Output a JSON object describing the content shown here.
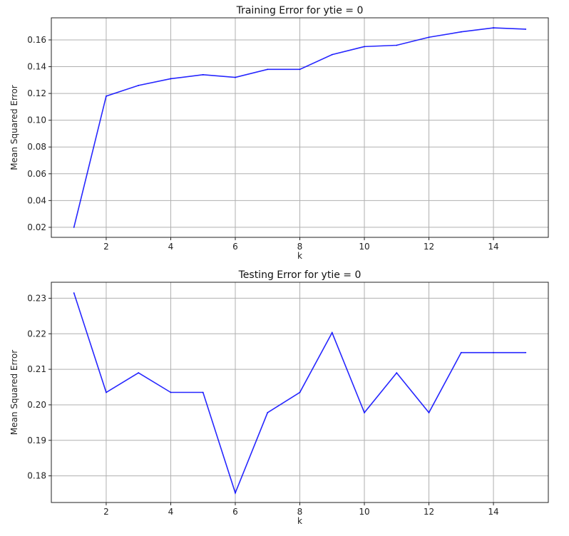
{
  "chart_data": [
    {
      "type": "line",
      "title": "Training Error for ytie = 0",
      "xlabel": "k",
      "ylabel": "Mean Squared Error",
      "grid": true,
      "xlim": [
        0.3,
        15.7
      ],
      "ylim": [
        0.0125,
        0.1765
      ],
      "xticks": [
        2,
        4,
        6,
        8,
        10,
        12,
        14
      ],
      "yticks": [
        0.02,
        0.04,
        0.06,
        0.08,
        0.1,
        0.12,
        0.14,
        0.16
      ],
      "ytick_labels": [
        "0.02",
        "0.04",
        "0.06",
        "0.08",
        "0.10",
        "0.12",
        "0.14",
        "0.16"
      ],
      "color": "#0000ff",
      "x": [
        1,
        2,
        3,
        4,
        5,
        6,
        7,
        8,
        9,
        10,
        11,
        12,
        13,
        14,
        15
      ],
      "y": [
        0.02,
        0.118,
        0.126,
        0.131,
        0.134,
        0.132,
        0.138,
        0.138,
        0.149,
        0.155,
        0.156,
        0.162,
        0.166,
        0.169,
        0.168
      ]
    },
    {
      "type": "line",
      "title": "Testing Error for ytie = 0",
      "xlabel": "k",
      "ylabel": "Mean Squared Error",
      "grid": true,
      "xlim": [
        0.3,
        15.7
      ],
      "ylim": [
        0.1725,
        0.2345
      ],
      "xticks": [
        2,
        4,
        6,
        8,
        10,
        12,
        14
      ],
      "yticks": [
        0.18,
        0.19,
        0.2,
        0.21,
        0.22,
        0.23
      ],
      "ytick_labels": [
        "0.18",
        "0.19",
        "0.20",
        "0.21",
        "0.22",
        "0.23"
      ],
      "color": "#0000ff",
      "x": [
        1,
        2,
        3,
        4,
        5,
        6,
        7,
        8,
        9,
        10,
        11,
        12,
        13,
        14,
        15
      ],
      "y": [
        0.2315,
        0.2035,
        0.209,
        0.2035,
        0.2035,
        0.1752,
        0.1978,
        0.2035,
        0.2203,
        0.1978,
        0.209,
        0.1978,
        0.2147,
        0.2147,
        0.2147
      ]
    }
  ]
}
